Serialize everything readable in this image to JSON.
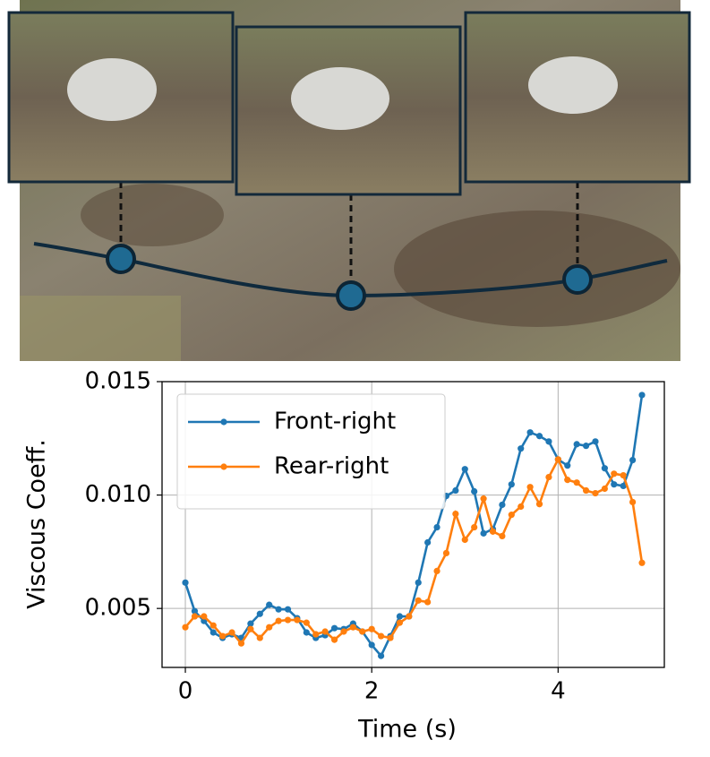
{
  "chart_data": {
    "type": "line",
    "xlabel": "Time (s)",
    "ylabel": "Viscous Coeff.",
    "x": [
      0,
      0.1,
      0.2,
      0.3,
      0.4,
      0.5,
      0.6,
      0.7,
      0.8,
      0.9,
      1.0,
      1.1,
      1.2,
      1.3,
      1.4,
      1.5,
      1.6,
      1.7,
      1.8,
      1.9,
      2.0,
      2.1,
      2.2,
      2.3,
      2.4,
      2.5,
      2.6,
      2.7,
      2.8,
      2.9,
      3.0,
      3.1,
      3.2,
      3.3,
      3.4,
      3.5,
      3.6,
      3.7,
      3.8,
      3.9,
      4.0,
      4.1,
      4.2,
      4.3,
      4.4,
      4.5,
      4.6,
      4.7,
      4.8,
      4.9
    ],
    "series": [
      {
        "name": "Front-right",
        "color": "#1f77b4",
        "values": [
          0.00614,
          0.00488,
          0.00445,
          0.00394,
          0.0037,
          0.00386,
          0.0037,
          0.00433,
          0.00476,
          0.00516,
          0.00496,
          0.00496,
          0.00457,
          0.00394,
          0.0037,
          0.00382,
          0.00413,
          0.00409,
          0.00433,
          0.00398,
          0.00339,
          0.00291,
          0.00378,
          0.00465,
          0.00465,
          0.00614,
          0.00791,
          0.00858,
          0.00996,
          0.0102,
          0.01114,
          0.01016,
          0.00831,
          0.0085,
          0.00957,
          0.01047,
          0.01205,
          0.01276,
          0.0126,
          0.01236,
          0.01157,
          0.0113,
          0.01224,
          0.01217,
          0.01236,
          0.01118,
          0.01047,
          0.0104,
          0.01154,
          0.01441
        ]
      },
      {
        "name": "Rear-right",
        "color": "#ff7f0e",
        "values": [
          0.00417,
          0.00465,
          0.00465,
          0.00425,
          0.00378,
          0.00394,
          0.00346,
          0.00409,
          0.0037,
          0.00417,
          0.00445,
          0.00449,
          0.00449,
          0.00437,
          0.00386,
          0.00398,
          0.00362,
          0.00398,
          0.00417,
          0.00398,
          0.00409,
          0.00378,
          0.0037,
          0.00437,
          0.00465,
          0.00535,
          0.00528,
          0.00665,
          0.00744,
          0.00917,
          0.00803,
          0.00858,
          0.00984,
          0.00839,
          0.00819,
          0.00913,
          0.00949,
          0.01035,
          0.0096,
          0.01079,
          0.01157,
          0.01067,
          0.01055,
          0.0102,
          0.01008,
          0.01028,
          0.01094,
          0.01087,
          0.00969,
          0.00701
        ]
      }
    ],
    "xlim": [
      -0.25,
      5.14
    ],
    "ylim": [
      0.0024,
      0.015
    ],
    "xticks": [
      0,
      2,
      4
    ],
    "yticks": [
      0.005,
      {
        "value": 0.01,
        "label": "0.010"
      },
      0.015
    ],
    "grid": true,
    "legend": "upper left"
  }
}
